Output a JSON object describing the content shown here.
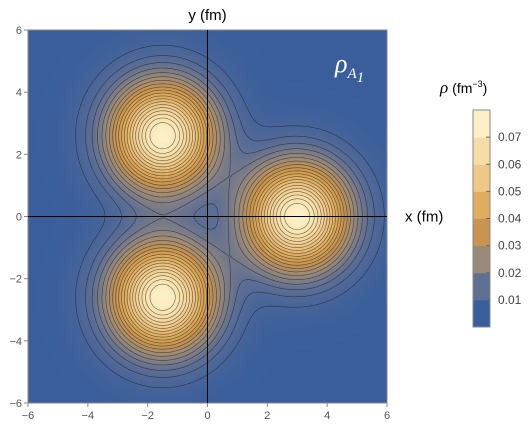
{
  "chart_data": {
    "type": "contour",
    "title": "",
    "xlabel": "x (fm)",
    "ylabel": "y (fm)",
    "xlim": [
      -6,
      6
    ],
    "ylim": [
      -6,
      6
    ],
    "x_ticks": [
      -6,
      -4,
      -2,
      0,
      2,
      4,
      6
    ],
    "y_ticks": [
      -6,
      -4,
      -2,
      0,
      2,
      4,
      6
    ],
    "annotation": {
      "symbol": "ρ",
      "subscript": "A",
      "subsubscript": "1",
      "position": "top-right"
    },
    "density_peaks": [
      {
        "x": 3.0,
        "y": 0.0,
        "peak": 0.08,
        "width": 1.2
      },
      {
        "x": -1.5,
        "y": 2.6,
        "peak": 0.08,
        "width": 1.2
      },
      {
        "x": -1.5,
        "y": -2.6,
        "peak": 0.08,
        "width": 1.2
      }
    ],
    "contour_levels_count": 20,
    "legend": {
      "title_symbol": "ρ",
      "title_unit_prefix": "(fm",
      "title_exponent": "−3",
      "title_unit_suffix": ")",
      "ticks": [
        "0.01",
        "0.02",
        "0.03",
        "0.04",
        "0.05",
        "0.06",
        "0.07"
      ],
      "range": [
        0,
        0.08
      ],
      "colors": [
        "#3a5e9c",
        "#5e6f94",
        "#9a8a7a",
        "#c8944e",
        "#e0ad5e",
        "#efc887",
        "#f6dda5",
        "#fdf0c8"
      ],
      "placement": "right"
    }
  }
}
